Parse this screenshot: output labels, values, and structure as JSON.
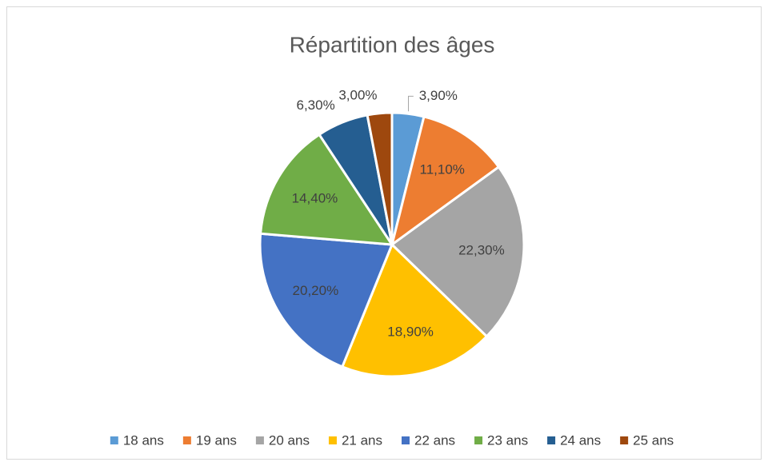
{
  "chart_data": {
    "type": "pie",
    "title": "Répartition des âges",
    "categories": [
      "18 ans",
      "19 ans",
      "20 ans",
      "21 ans",
      "22 ans",
      "23 ans",
      "24 ans",
      "25 ans"
    ],
    "values": [
      3.9,
      11.1,
      22.3,
      18.9,
      20.2,
      14.4,
      6.3,
      3.0
    ],
    "value_labels": [
      "3,90%",
      "11,10%",
      "22,30%",
      "18,90%",
      "20,20%",
      "14,40%",
      "6,30%",
      "3,00%"
    ],
    "colors": [
      "#5b9bd5",
      "#ed7d31",
      "#a5a5a5",
      "#ffc000",
      "#4472c4",
      "#70ad47",
      "#255e91",
      "#9e480e"
    ],
    "legend": "bottom"
  }
}
